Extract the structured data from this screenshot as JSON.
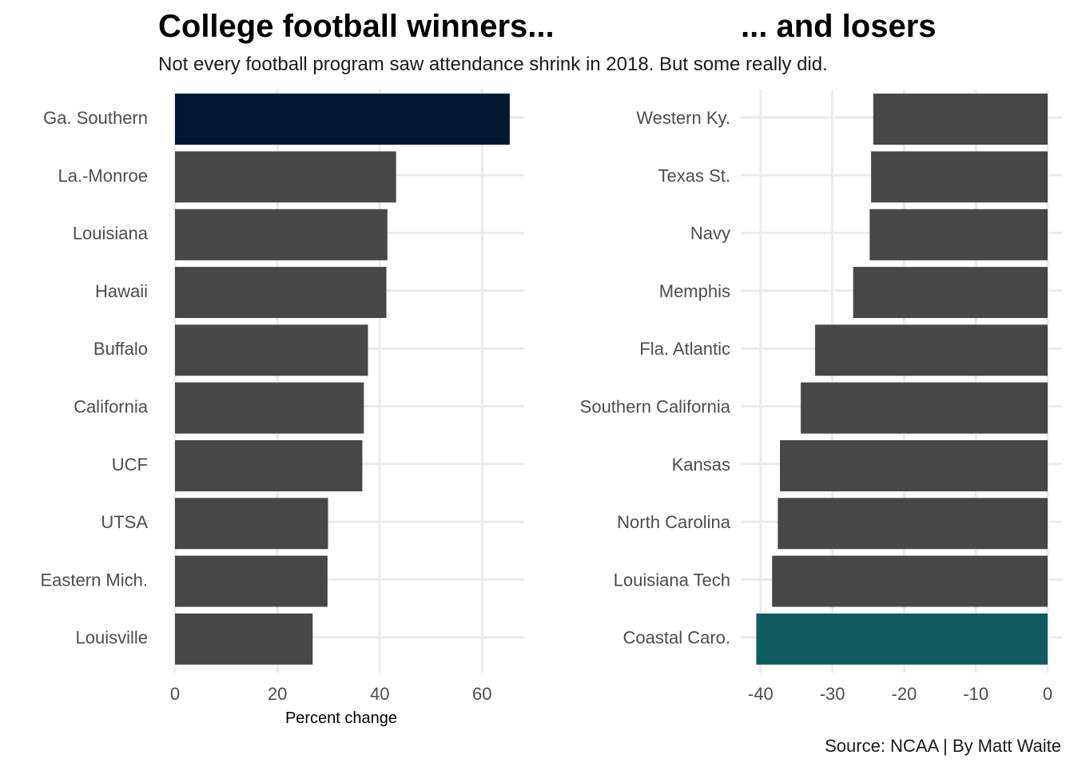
{
  "title_left": "College football winners...",
  "title_right": "... and losers",
  "subtitle": "Not every football program saw attendance shrink in 2018. But some really did.",
  "caption": "Source: NCAA | By Matt Waite",
  "colors": {
    "default_bar": "#474747",
    "highlight_winner": "#011833",
    "highlight_loser": "#0f5c5e",
    "grid": "#ebebeb"
  },
  "chart_data": [
    {
      "type": "bar",
      "orientation": "horizontal",
      "title": "College football winners...",
      "xlabel": "Percent change",
      "ylabel": "",
      "xlim": [
        0,
        67
      ],
      "x_ticks": [
        "0",
        "20",
        "40",
        "60"
      ],
      "x_tick_values": [
        0,
        20,
        40,
        60
      ],
      "grid": true,
      "categories": [
        "Ga. Southern",
        "La.-Monroe",
        "Louisiana",
        "Hawaii",
        "Buffalo",
        "California",
        "UCF",
        "UTSA",
        "Eastern Mich.",
        "Louisville"
      ],
      "values": [
        65.4,
        43.2,
        41.5,
        41.3,
        37.7,
        36.9,
        36.6,
        29.9,
        29.8,
        26.9
      ],
      "highlight": "Ga. Southern"
    },
    {
      "type": "bar",
      "orientation": "horizontal",
      "title": "... and losers",
      "xlabel": "",
      "ylabel": "",
      "xlim": [
        -41,
        0
      ],
      "x_ticks": [
        "-40",
        "-30",
        "-20",
        "-10",
        "0"
      ],
      "x_tick_values": [
        -40,
        -30,
        -20,
        -10,
        0
      ],
      "grid": true,
      "categories": [
        "Western Ky.",
        "Texas St.",
        "Navy",
        "Memphis",
        "Fla. Atlantic",
        "Southern California",
        "Kansas",
        "North Carolina",
        "Louisiana Tech",
        "Coastal Caro."
      ],
      "values": [
        -24.3,
        -24.6,
        -24.8,
        -27.1,
        -32.4,
        -34.4,
        -37.3,
        -37.6,
        -38.4,
        -40.6
      ],
      "highlight": "Coastal Caro."
    }
  ]
}
